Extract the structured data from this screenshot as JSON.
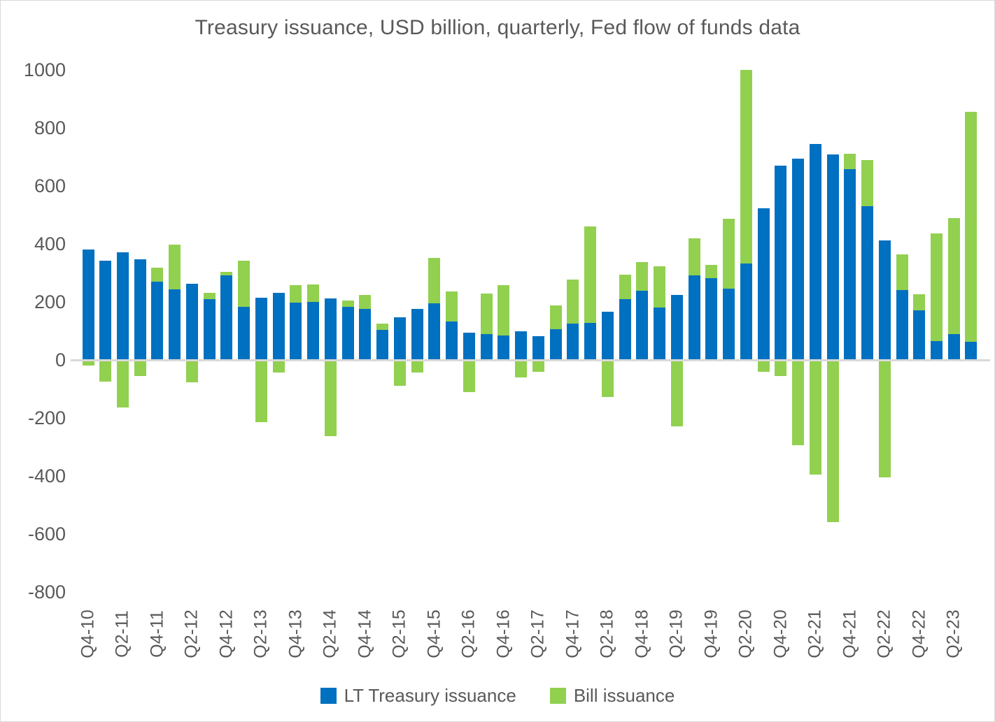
{
  "frame": {
    "background": "#ffffff",
    "border_color": "#d9d9d9"
  },
  "chart_data": {
    "type": "bar",
    "stacked": true,
    "title": "Treasury issuance, USD billion, quarterly, Fed flow of funds data",
    "xlabel": "",
    "ylabel": "",
    "ylim": [
      -800,
      1000
    ],
    "y_ticks": [
      1000,
      800,
      600,
      400,
      200,
      0,
      -200,
      -400,
      -600,
      -800
    ],
    "grid": false,
    "legend_position": "bottom",
    "axis_text_color": "#595959",
    "zero_line_color": "#d9d9d9",
    "x_label_every": 2,
    "categories": [
      "Q4-10",
      "Q1-11",
      "Q2-11",
      "Q3-11",
      "Q4-11",
      "Q1-12",
      "Q2-12",
      "Q3-12",
      "Q4-12",
      "Q1-13",
      "Q2-13",
      "Q3-13",
      "Q4-13",
      "Q1-14",
      "Q2-14",
      "Q3-14",
      "Q4-14",
      "Q1-15",
      "Q2-15",
      "Q3-15",
      "Q4-15",
      "Q1-16",
      "Q2-16",
      "Q3-16",
      "Q4-16",
      "Q1-17",
      "Q2-17",
      "Q3-17",
      "Q4-17",
      "Q1-18",
      "Q2-18",
      "Q3-18",
      "Q4-18",
      "Q1-19",
      "Q2-19",
      "Q3-19",
      "Q4-19",
      "Q1-20",
      "Q2-20",
      "Q3-20",
      "Q4-20",
      "Q1-21",
      "Q2-21",
      "Q3-21",
      "Q4-21",
      "Q1-22",
      "Q2-22",
      "Q3-22",
      "Q4-22",
      "Q1-23",
      "Q2-23",
      "Q3-23"
    ],
    "series": [
      {
        "name": "LT Treasury issuance",
        "color": "#0070C0",
        "values": [
          380,
          342,
          370,
          347,
          270,
          243,
          262,
          210,
          292,
          183,
          214,
          232,
          197,
          201,
          211,
          182,
          175,
          103,
          146,
          176,
          196,
          132,
          93,
          88,
          85,
          100,
          82,
          105,
          125,
          128,
          166,
          210,
          238,
          180,
          225,
          292,
          283,
          245,
          333,
          522,
          670,
          695,
          745,
          708,
          657,
          530,
          412,
          240,
          172,
          65,
          90,
          63
        ]
      },
      {
        "name": "Bill issuance",
        "color": "#92D050",
        "values": [
          -20,
          -75,
          -165,
          -55,
          48,
          155,
          -78,
          22,
          12,
          160,
          -215,
          -43,
          62,
          60,
          -263,
          23,
          48,
          22,
          -88,
          -43,
          156,
          104,
          -110,
          140,
          172,
          -60,
          -42,
          83,
          152,
          332,
          -128,
          85,
          100,
          143,
          -228,
          127,
          45,
          242,
          667,
          -40,
          -55,
          -295,
          -395,
          -560,
          53,
          158,
          -405,
          123,
          55,
          370,
          400,
          792
        ]
      }
    ]
  },
  "legend": {
    "items": [
      {
        "label": "LT Treasury issuance",
        "color": "#0070C0"
      },
      {
        "label": "Bill issuance",
        "color": "#92D050"
      }
    ]
  }
}
